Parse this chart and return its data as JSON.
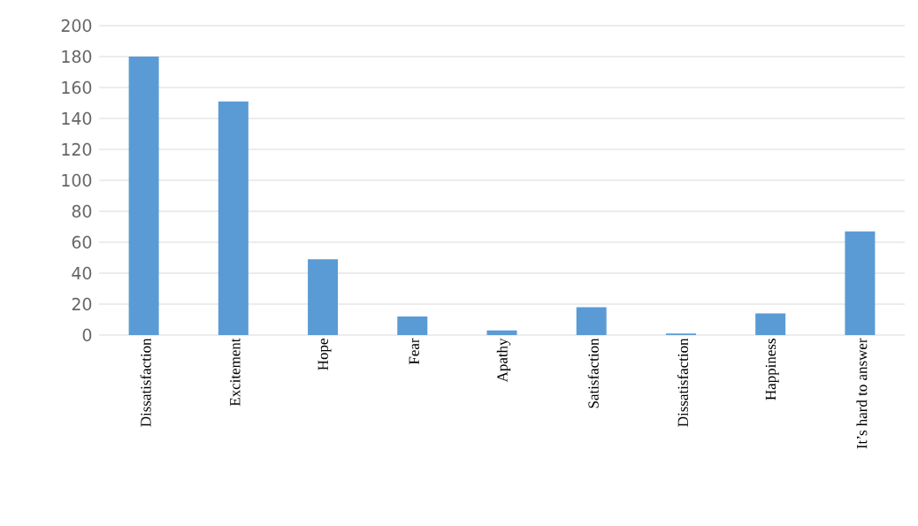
{
  "chart_data": {
    "type": "bar",
    "categories": [
      "Dissatisfaction",
      "Excitement",
      "Hope",
      "Fear",
      "Apathy",
      "Satisfaction",
      "Dissatisfaction",
      "Happiness",
      "It’s hard to answer"
    ],
    "values": [
      180,
      151,
      49,
      12,
      3,
      18,
      1,
      14,
      67
    ],
    "color": "#5b9bd5",
    "ylim": [
      0,
      200
    ],
    "yticks": [
      0,
      20,
      40,
      60,
      80,
      100,
      120,
      140,
      160,
      180,
      200
    ],
    "grid": "y"
  }
}
